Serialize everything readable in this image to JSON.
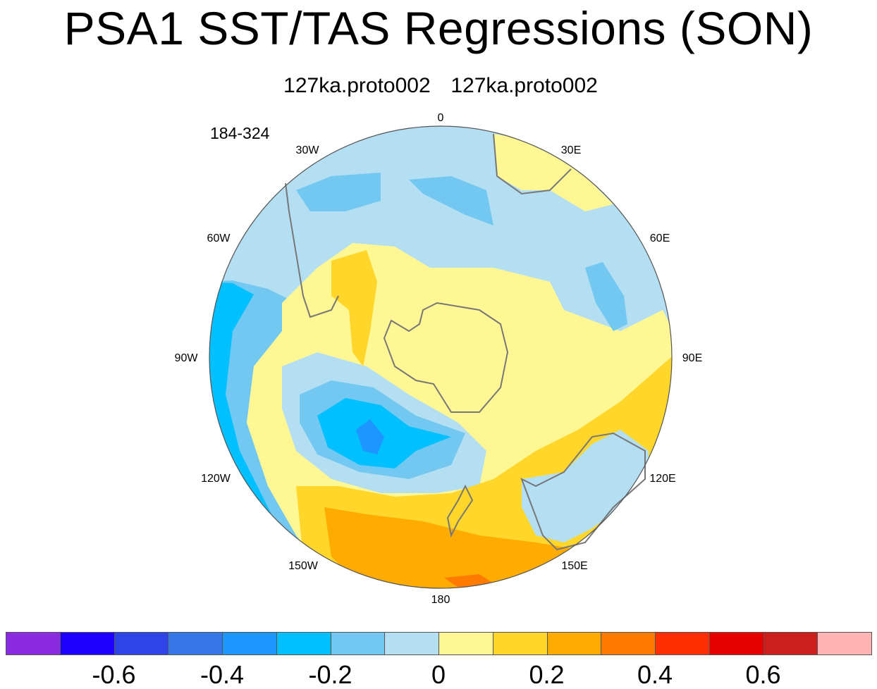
{
  "title": "PSA1 SST/TAS Regressions (SON)",
  "subtitle": "127ka.proto002  127ka.proto002",
  "period": "184-324",
  "map": {
    "projection": "south-polar-stereographic",
    "longitude_labels": [
      "0",
      "30E",
      "60E",
      "90E",
      "120E",
      "150E",
      "180",
      "150W",
      "120W",
      "90W",
      "60W",
      "30W"
    ]
  },
  "colorbar": {
    "colors": [
      "#8a2be2",
      "#1e00ff",
      "#2e44e8",
      "#3577e8",
      "#1e96ff",
      "#00c0ff",
      "#72c8f0",
      "#b4def2",
      "#fff794",
      "#ffd629",
      "#ffab00",
      "#ff7b00",
      "#ff2e00",
      "#e60000",
      "#cd1e1e",
      "#ffb4b4"
    ],
    "tick_labels": [
      "-0.6",
      "-0.4",
      "-0.2",
      "0",
      "0.2",
      "0.4",
      "0.6"
    ],
    "tick_values": [
      -0.6,
      -0.4,
      -0.2,
      0,
      0.2,
      0.4,
      0.6
    ]
  }
}
